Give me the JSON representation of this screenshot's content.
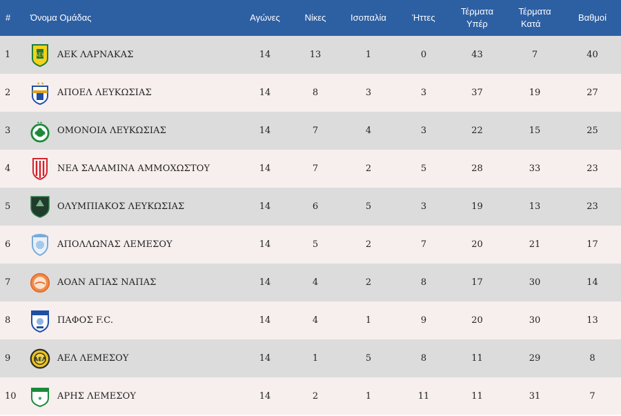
{
  "headers": {
    "rank": "#",
    "team": "Όνομα Ομάδας",
    "played": "Αγώνες",
    "wins": "Νίκες",
    "draws": "Ισοπαλία",
    "losses": "Ήττες",
    "goals_for_1": "Τέρματα",
    "goals_for_2": "Υπέρ",
    "goals_against_1": "Τέρματα",
    "goals_against_2": "Κατά",
    "points": "Βαθμοί"
  },
  "rows": [
    {
      "rank": "1",
      "team": "ΑΕΚ ΛΑΡΝΑΚΑΣ",
      "crest": "aek-larnaca-crest-icon",
      "played": "14",
      "wins": "13",
      "draws": "1",
      "losses": "0",
      "gf": "43",
      "ga": "7",
      "pts": "40"
    },
    {
      "rank": "2",
      "team": "ΑΠΟΕΛ ΛΕΥΚΩΣΙΑΣ",
      "crest": "apoel-crest-icon",
      "played": "14",
      "wins": "8",
      "draws": "3",
      "losses": "3",
      "gf": "37",
      "ga": "19",
      "pts": "27"
    },
    {
      "rank": "3",
      "team": "ΟΜΟΝΟΙΑ ΛΕΥΚΩΣΙΑΣ",
      "crest": "omonoia-crest-icon",
      "played": "14",
      "wins": "7",
      "draws": "4",
      "losses": "3",
      "gf": "22",
      "ga": "15",
      "pts": "25"
    },
    {
      "rank": "4",
      "team": "ΝΕΑ ΣΑΛΑΜΙΝΑ ΑΜΜΟΧΩΣΤΟΥ",
      "crest": "nea-salamina-crest-icon",
      "played": "14",
      "wins": "7",
      "draws": "2",
      "losses": "5",
      "gf": "28",
      "ga": "33",
      "pts": "23"
    },
    {
      "rank": "5",
      "team": "ΟΛΥΜΠΙΑΚΟΣ ΛΕΥΚΩΣΙΑΣ",
      "crest": "olympiakos-nicosia-crest-icon",
      "played": "14",
      "wins": "6",
      "draws": "5",
      "losses": "3",
      "gf": "19",
      "ga": "13",
      "pts": "23"
    },
    {
      "rank": "6",
      "team": "ΑΠΟΛΛΩΝΑΣ ΛΕΜΕΣΟΥ",
      "crest": "apollon-crest-icon",
      "played": "14",
      "wins": "5",
      "draws": "2",
      "losses": "7",
      "gf": "20",
      "ga": "21",
      "pts": "17"
    },
    {
      "rank": "7",
      "team": "ΑΟΑΝ ΑΓΙΑΣ ΝΑΠΑΣ",
      "crest": "aoan-crest-icon",
      "played": "14",
      "wins": "4",
      "draws": "2",
      "losses": "8",
      "gf": "17",
      "ga": "30",
      "pts": "14"
    },
    {
      "rank": "8",
      "team": "ΠΑΦΟΣ F.C.",
      "crest": "pafos-crest-icon",
      "played": "14",
      "wins": "4",
      "draws": "1",
      "losses": "9",
      "gf": "20",
      "ga": "30",
      "pts": "13"
    },
    {
      "rank": "9",
      "team": "ΑΕΛ ΛΕΜΕΣΟΥ",
      "crest": "ael-crest-icon",
      "played": "14",
      "wins": "1",
      "draws": "5",
      "losses": "8",
      "gf": "11",
      "ga": "29",
      "pts": "8"
    },
    {
      "rank": "10",
      "team": "ΑΡΗΣ ΛΕΜΕΣΟΥ",
      "crest": "aris-crest-icon",
      "played": "14",
      "wins": "2",
      "draws": "1",
      "losses": "11",
      "gf": "11",
      "ga": "31",
      "pts": "7"
    }
  ],
  "colors": {
    "header_bg": "#2d5fa3",
    "row_odd": "#dcdcdc",
    "row_even": "#f7eeee"
  }
}
